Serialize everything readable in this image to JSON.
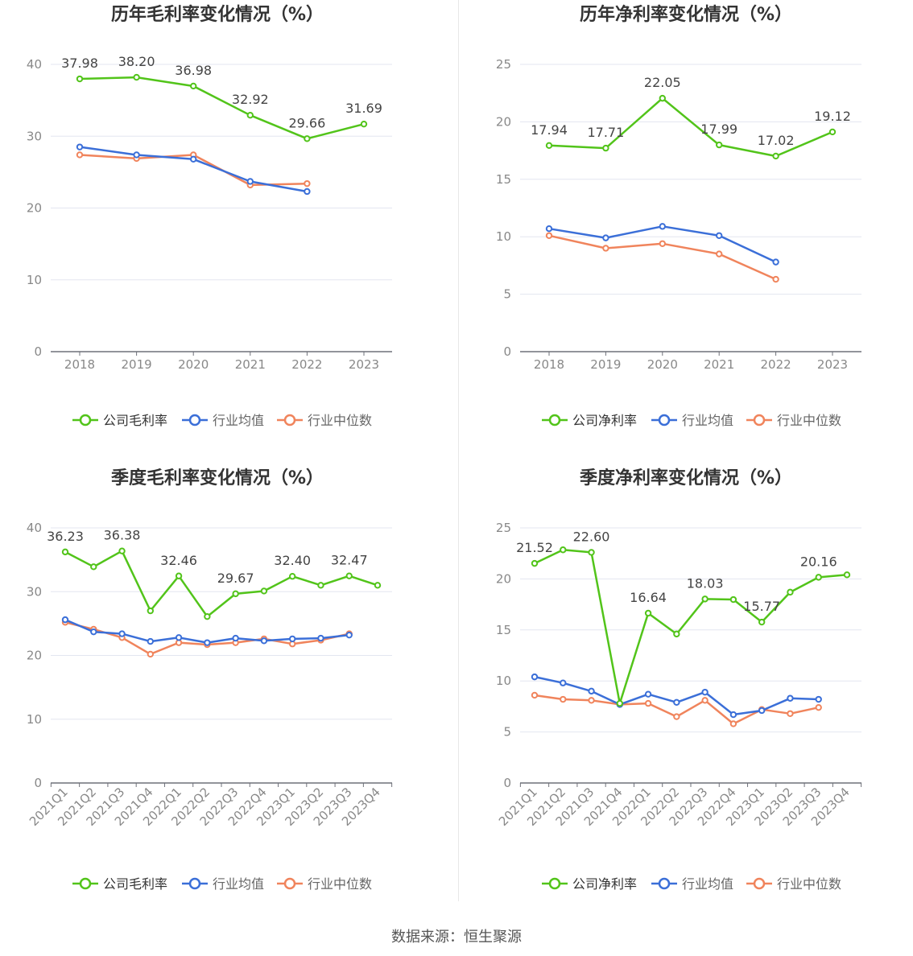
{
  "colors": {
    "company": "#52c41a",
    "avg": "#3b6fd8",
    "median": "#f0845c",
    "grid": "#e3e6f0",
    "axis": "#888888",
    "title": "#333333"
  },
  "chart_data": [
    {
      "type": "line",
      "title": "历年毛利率变化情况（%）",
      "categories": [
        "2018",
        "2019",
        "2020",
        "2021",
        "2022",
        "2023"
      ],
      "ylim": [
        0,
        40
      ],
      "yticks": [
        0,
        10,
        20,
        30,
        40
      ],
      "series": [
        {
          "name": "公司毛利率",
          "values": [
            37.98,
            38.2,
            36.98,
            32.92,
            29.66,
            31.69
          ]
        },
        {
          "name": "行业均值",
          "values": [
            28.5,
            27.4,
            26.8,
            23.7,
            22.3,
            null
          ]
        },
        {
          "name": "行业中位数",
          "values": [
            27.4,
            26.9,
            27.4,
            23.2,
            23.4,
            null
          ]
        }
      ],
      "labels": [
        "37.98",
        "38.20",
        "36.98",
        "32.92",
        "29.66",
        "31.69"
      ],
      "legend": [
        "公司毛利率",
        "行业均值",
        "行业中位数"
      ],
      "grid": true,
      "legend_position": "bottom"
    },
    {
      "type": "line",
      "title": "历年净利率变化情况（%）",
      "categories": [
        "2018",
        "2019",
        "2020",
        "2021",
        "2022",
        "2023"
      ],
      "ylim": [
        0,
        25
      ],
      "yticks": [
        0,
        5,
        10,
        15,
        20,
        25
      ],
      "series": [
        {
          "name": "公司净利率",
          "values": [
            17.94,
            17.71,
            22.05,
            17.99,
            17.02,
            19.12
          ]
        },
        {
          "name": "行业均值",
          "values": [
            10.7,
            9.9,
            10.9,
            10.1,
            7.8,
            null
          ]
        },
        {
          "name": "行业中位数",
          "values": [
            10.1,
            9.0,
            9.4,
            8.5,
            6.3,
            null
          ]
        }
      ],
      "labels": [
        "17.94",
        "17.71",
        "22.05",
        "17.99",
        "17.02",
        "19.12"
      ],
      "legend": [
        "公司净利率",
        "行业均值",
        "行业中位数"
      ],
      "grid": true,
      "legend_position": "bottom"
    },
    {
      "type": "line",
      "title": "季度毛利率变化情况（%）",
      "categories": [
        "2021Q1",
        "2021Q2",
        "2021Q3",
        "2021Q4",
        "2022Q1",
        "2022Q2",
        "2022Q3",
        "2022Q4",
        "2023Q1",
        "2023Q2",
        "2023Q3",
        "2023Q4"
      ],
      "ylim": [
        0,
        40
      ],
      "yticks": [
        0,
        10,
        20,
        30,
        40
      ],
      "series": [
        {
          "name": "公司毛利率",
          "values": [
            36.23,
            33.9,
            36.38,
            27.0,
            32.46,
            26.1,
            29.67,
            30.1,
            32.4,
            31.0,
            32.47,
            31.0
          ]
        },
        {
          "name": "行业均值",
          "values": [
            25.6,
            23.7,
            23.4,
            22.2,
            22.8,
            22.0,
            22.7,
            22.3,
            22.6,
            22.7,
            23.2,
            null
          ]
        },
        {
          "name": "行业中位数",
          "values": [
            25.2,
            24.1,
            22.8,
            20.2,
            22.0,
            21.7,
            22.0,
            22.6,
            21.8,
            22.4,
            23.4,
            null
          ]
        }
      ],
      "labels": [
        "36.23",
        "",
        "36.38",
        "",
        "32.46",
        "",
        "29.67",
        "",
        "32.40",
        "",
        "32.47",
        ""
      ],
      "legend": [
        "公司毛利率",
        "行业均值",
        "行业中位数"
      ],
      "grid": true,
      "legend_position": "bottom"
    },
    {
      "type": "line",
      "title": "季度净利率变化情况（%）",
      "categories": [
        "2021Q1",
        "2021Q2",
        "2021Q3",
        "2021Q4",
        "2022Q1",
        "2022Q2",
        "2022Q3",
        "2022Q4",
        "2023Q1",
        "2023Q2",
        "2023Q3",
        "2023Q4"
      ],
      "ylim": [
        0,
        25
      ],
      "yticks": [
        0,
        5,
        10,
        15,
        20,
        25
      ],
      "series": [
        {
          "name": "公司净利率",
          "values": [
            21.52,
            22.85,
            22.6,
            7.8,
            16.64,
            14.6,
            18.03,
            17.98,
            15.77,
            18.7,
            20.16,
            20.4
          ]
        },
        {
          "name": "行业均值",
          "values": [
            10.4,
            9.8,
            9.0,
            7.7,
            8.7,
            7.9,
            8.9,
            6.7,
            7.1,
            8.3,
            8.2,
            null
          ]
        },
        {
          "name": "行业中位数",
          "values": [
            8.6,
            8.2,
            8.1,
            7.7,
            7.8,
            6.5,
            8.1,
            5.8,
            7.2,
            6.8,
            7.4,
            null
          ]
        }
      ],
      "labels": [
        "21.52",
        "",
        "22.60",
        "",
        "16.64",
        "",
        "18.03",
        "",
        "15.77",
        "",
        "20.16",
        ""
      ],
      "legend": [
        "公司净利率",
        "行业均值",
        "行业中位数"
      ],
      "grid": true,
      "legend_position": "bottom"
    }
  ],
  "footer": {
    "source": "数据来源：恒生聚源"
  }
}
